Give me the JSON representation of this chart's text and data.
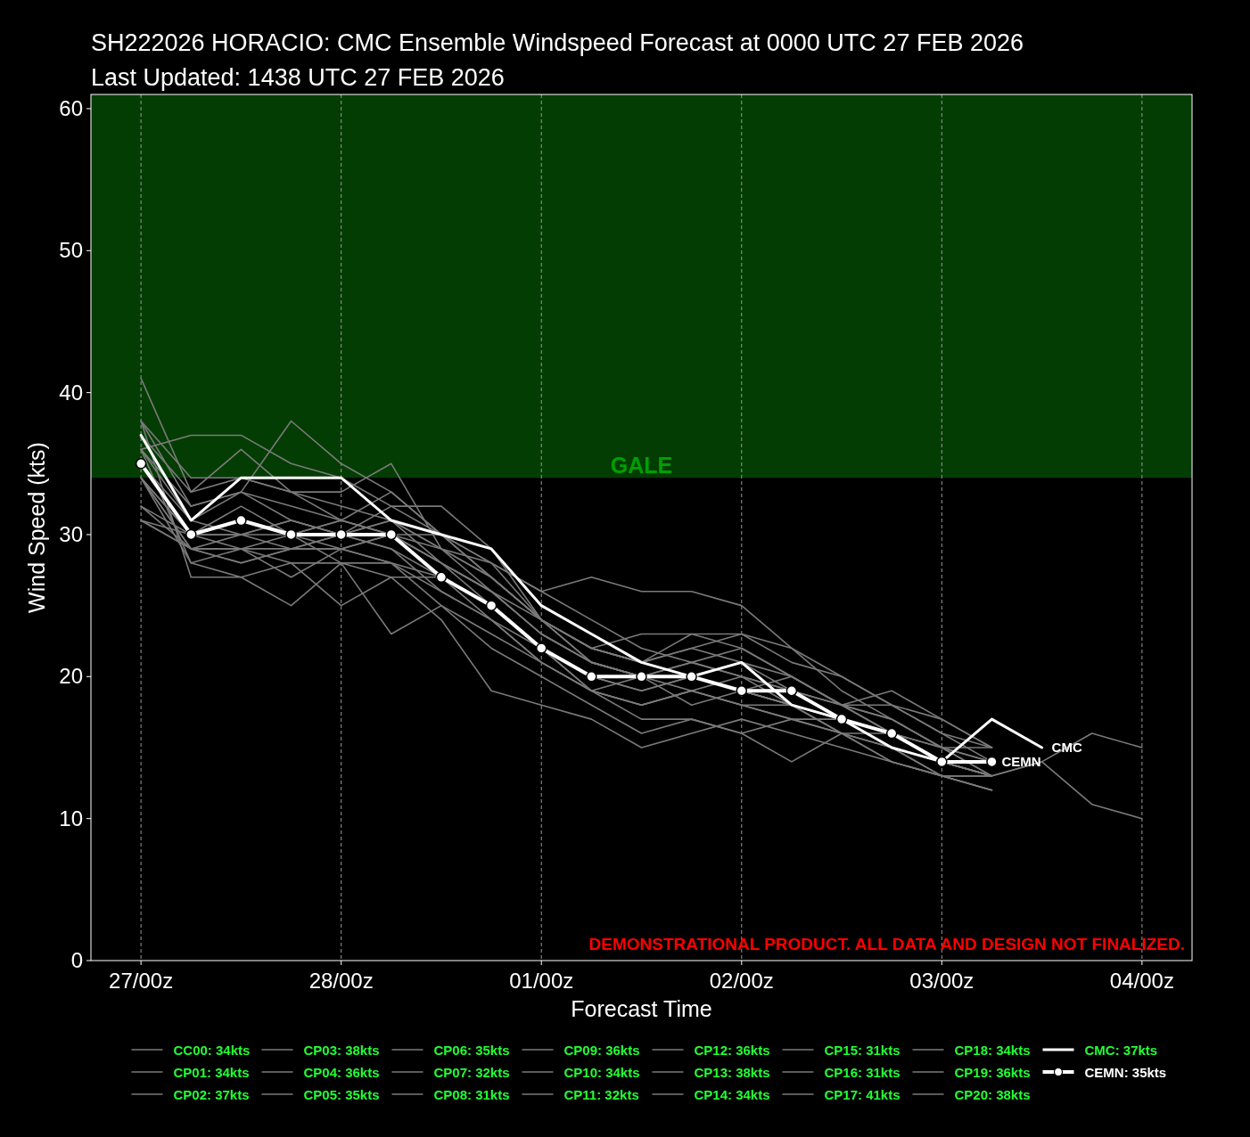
{
  "chart_data": {
    "type": "line",
    "title": "SH222026 HORACIO: CMC Ensemble Windspeed Forecast at 0000 UTC 27 FEB 2026",
    "subtitle": "Last Updated: 1438 UTC 27 FEB 2026",
    "xlabel": "Forecast Time",
    "ylabel": "Wind Speed (kts)",
    "x": [
      "2026-02-27T00:00",
      "2026-02-27T06:00",
      "2026-02-27T12:00",
      "2026-02-27T18:00",
      "2026-02-28T00:00",
      "2026-02-28T06:00",
      "2026-02-28T12:00",
      "2026-02-28T18:00",
      "2026-03-01T00:00",
      "2026-03-01T06:00",
      "2026-03-01T12:00",
      "2026-03-01T18:00",
      "2026-03-02T00:00",
      "2026-03-02T06:00",
      "2026-03-02T12:00",
      "2026-03-02T18:00",
      "2026-03-03T00:00",
      "2026-03-03T06:00",
      "2026-03-03T12:00",
      "2026-03-03T18:00",
      "2026-03-04T00:00"
    ],
    "xlim": [
      "2026-02-26T18:00",
      "2026-03-04T06:00"
    ],
    "xticks": [
      {
        "value": "2026-02-27T00:00",
        "label": "27/00z"
      },
      {
        "value": "2026-02-28T00:00",
        "label": "28/00z"
      },
      {
        "value": "2026-03-01T00:00",
        "label": "01/00z"
      },
      {
        "value": "2026-03-02T00:00",
        "label": "02/00z"
      },
      {
        "value": "2026-03-03T00:00",
        "label": "03/00z"
      },
      {
        "value": "2026-03-04T00:00",
        "label": "04/00z"
      }
    ],
    "ylim": [
      0,
      61
    ],
    "yticks": [
      0,
      10,
      20,
      30,
      40,
      50,
      60
    ],
    "grid": "x",
    "legend": "bottom",
    "bands": [
      {
        "axis": "y",
        "from": 34,
        "to": 61,
        "label": "GALE",
        "color": "#033d03"
      }
    ],
    "annotations": [
      {
        "text": "CMC",
        "x": "2026-03-03T12:00",
        "y": 15
      },
      {
        "text": "CEMN",
        "x": "2026-03-03T06:00",
        "y": 14
      },
      "DEMONSTRATIONAL PRODUCT. ALL DATA AND DESIGN NOT FINALIZED."
    ],
    "series": [
      {
        "name": "CC00: 34kts",
        "color": "#7a7a7a",
        "values": [
          34,
          30,
          31,
          30,
          31,
          30,
          28,
          26,
          23,
          21,
          20,
          21,
          20,
          19,
          18,
          17,
          15,
          14,
          null,
          null,
          null
        ]
      },
      {
        "name": "CP01: 34kts",
        "color": "#7a7a7a",
        "values": [
          34,
          29,
          30,
          29,
          30,
          29,
          27,
          25,
          22,
          20,
          19,
          20,
          19,
          18,
          17,
          16,
          14,
          13,
          null,
          null,
          null
        ]
      },
      {
        "name": "CP02: 37kts",
        "color": "#7a7a7a",
        "values": [
          37,
          33,
          34,
          33,
          32,
          31,
          28,
          26,
          24,
          22,
          21,
          22,
          21,
          20,
          18,
          17,
          15,
          15,
          null,
          null,
          null
        ]
      },
      {
        "name": "CP03: 38kts",
        "color": "#7a7a7a",
        "values": [
          38,
          34,
          34,
          33,
          31,
          33,
          30,
          27,
          24,
          21,
          20,
          19,
          20,
          18,
          17,
          16,
          14,
          13,
          14,
          16,
          15
        ]
      },
      {
        "name": "CP04: 36kts",
        "color": "#7a7a7a",
        "values": [
          36,
          37,
          37,
          35,
          34,
          32,
          30,
          28,
          26,
          24,
          22,
          21,
          20,
          19,
          18,
          16,
          14,
          13,
          null,
          null,
          null
        ]
      },
      {
        "name": "CP05: 35kts",
        "color": "#7a7a7a",
        "values": [
          35,
          31,
          33,
          31,
          30,
          29,
          26,
          24,
          21,
          19,
          18,
          19,
          18,
          17,
          16,
          15,
          13,
          12,
          null,
          null,
          null
        ]
      },
      {
        "name": "CP06: 35kts",
        "color": "#7a7a7a",
        "values": [
          35,
          30,
          32,
          30,
          29,
          28,
          27,
          24,
          21,
          19,
          20,
          20,
          19,
          18,
          16,
          15,
          13,
          13,
          null,
          null,
          null
        ]
      },
      {
        "name": "CP07: 32kts",
        "color": "#7a7a7a",
        "values": [
          32,
          30,
          30,
          31,
          30,
          31,
          29,
          26,
          23,
          21,
          20,
          21,
          22,
          20,
          18,
          16,
          14,
          13,
          null,
          null,
          null
        ]
      },
      {
        "name": "CP08: 31kts",
        "color": "#7a7a7a",
        "values": [
          31,
          29,
          28,
          29,
          30,
          31,
          29,
          27,
          24,
          22,
          21,
          20,
          19,
          18,
          17,
          16,
          14,
          13,
          14,
          11,
          10
        ]
      },
      {
        "name": "CP09: 36kts",
        "color": "#7a7a7a",
        "values": [
          36,
          32,
          33,
          32,
          31,
          30,
          29,
          28,
          26,
          27,
          26,
          26,
          25,
          22,
          19,
          17,
          15,
          13,
          null,
          null,
          null
        ]
      },
      {
        "name": "CP10: 34kts",
        "color": "#7a7a7a",
        "values": [
          34,
          30,
          29,
          28,
          28,
          27,
          27,
          25,
          22,
          20,
          19,
          20,
          19,
          18,
          17,
          16,
          14,
          13,
          null,
          null,
          null
        ]
      },
      {
        "name": "CP11: 32kts",
        "color": "#7a7a7a",
        "values": [
          32,
          29,
          28,
          29,
          29,
          28,
          25,
          23,
          21,
          19,
          18,
          19,
          18,
          17,
          16,
          16,
          15,
          14,
          null,
          null,
          null
        ]
      },
      {
        "name": "CP12: 36kts",
        "color": "#7a7a7a",
        "values": [
          36,
          31,
          30,
          31,
          30,
          32,
          32,
          29,
          24,
          22,
          23,
          23,
          22,
          20,
          18,
          18,
          16,
          15,
          null,
          null,
          null
        ]
      },
      {
        "name": "CP13: 38kts",
        "color": "#7a7a7a",
        "values": [
          38,
          32,
          33,
          38,
          35,
          33,
          30,
          27,
          24,
          22,
          21,
          22,
          23,
          22,
          20,
          18,
          16,
          14,
          null,
          null,
          null
        ]
      },
      {
        "name": "CP14: 34kts",
        "color": "#7a7a7a",
        "values": [
          34,
          28,
          29,
          27,
          29,
          30,
          28,
          26,
          23,
          21,
          20,
          18,
          19,
          20,
          18,
          19,
          17,
          15,
          null,
          null,
          null
        ]
      },
      {
        "name": "CP15: 31kts",
        "color": "#7a7a7a",
        "values": [
          31,
          29,
          29,
          30,
          31,
          30,
          30,
          28,
          24,
          21,
          20,
          20,
          21,
          19,
          17,
          16,
          14,
          13,
          null,
          null,
          null
        ]
      },
      {
        "name": "CP16: 31kts",
        "color": "#7a7a7a",
        "values": [
          31,
          30,
          30,
          30,
          28,
          28,
          26,
          24,
          22,
          19,
          18,
          19,
          18,
          18,
          16,
          14,
          13,
          12,
          null,
          null,
          null
        ]
      },
      {
        "name": "CP17: 41kts",
        "color": "#7a7a7a",
        "values": [
          41,
          33,
          36,
          33,
          33,
          35,
          29,
          27,
          24,
          22,
          21,
          23,
          23,
          21,
          20,
          18,
          17,
          15,
          null,
          null,
          null
        ]
      },
      {
        "name": "CP18: 34kts",
        "color": "#7a7a7a",
        "values": [
          34,
          29,
          29,
          29,
          29,
          30,
          28,
          25,
          22,
          19,
          17,
          17,
          16,
          17,
          17,
          16,
          15,
          13,
          null,
          null,
          null
        ]
      },
      {
        "name": "CP19: 36kts",
        "color": "#7a7a7a",
        "values": [
          36,
          28,
          27,
          25,
          28,
          23,
          25,
          22,
          20,
          18,
          16,
          17,
          16,
          14,
          16,
          14,
          13,
          12,
          null,
          null,
          null
        ]
      },
      {
        "name": "CP20: 38kts",
        "color": "#7a7a7a",
        "values": [
          38,
          27,
          27,
          28,
          25,
          27,
          24,
          19,
          18,
          17,
          15,
          16,
          17,
          16,
          15,
          14,
          13,
          13,
          null,
          null,
          null
        ]
      },
      {
        "name": "CMC: 37kts",
        "color": "#ffffff",
        "values": [
          37,
          31,
          34,
          34,
          34,
          31,
          30,
          29,
          25,
          23,
          21,
          20,
          21,
          18,
          17,
          15,
          14,
          17,
          15,
          null,
          null
        ]
      },
      {
        "name": "CEMN: 35kts",
        "color": "#ffffff",
        "marker": "circle",
        "values": [
          35,
          30,
          31,
          30,
          30,
          30,
          27,
          25,
          22,
          20,
          20,
          20,
          19,
          19,
          17,
          16,
          14,
          14,
          null,
          null,
          null
        ]
      }
    ]
  }
}
